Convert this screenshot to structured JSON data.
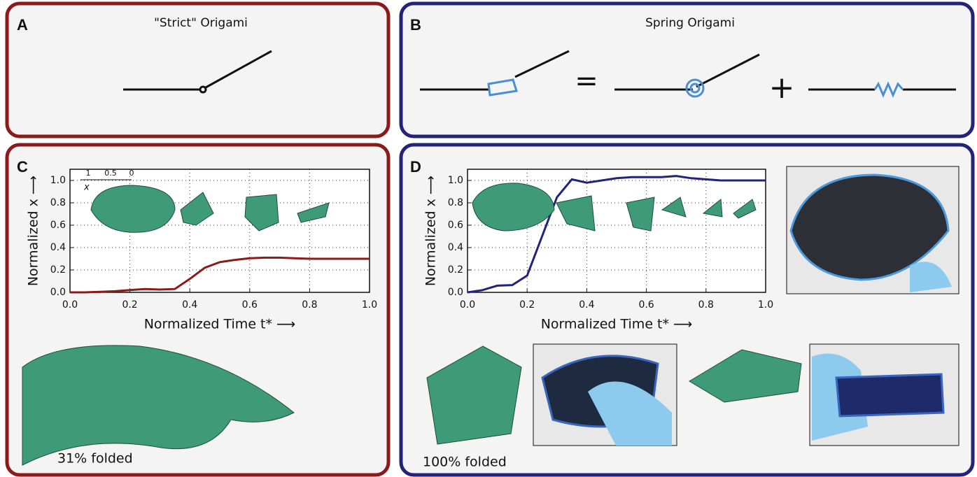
{
  "panels": {
    "A": {
      "label": "A",
      "title": "\"Strict\" Origami"
    },
    "B": {
      "label": "B",
      "title": "Spring Origami",
      "equals": "=",
      "plus": "+"
    },
    "C": {
      "label": "C",
      "caption": "31% folded",
      "inset_ticks": [
        "1",
        "0.5",
        "0"
      ],
      "inset_axis": "x"
    },
    "D": {
      "label": "D",
      "caption": "100% folded"
    }
  },
  "chart_data": [
    {
      "type": "line",
      "xlabel": "Normalized Time t* ⟶",
      "ylabel": "Normalized x ⟶",
      "x": [
        0,
        0.05,
        0.1,
        0.15,
        0.2,
        0.25,
        0.3,
        0.35,
        0.4,
        0.45,
        0.5,
        0.55,
        0.6,
        0.65,
        0.7,
        0.75,
        0.8,
        0.85,
        0.9,
        0.95,
        1.0
      ],
      "series": [
        {
          "color": "#8b1a1a",
          "values": [
            0,
            0,
            0.005,
            0.01,
            0.02,
            0.03,
            0.025,
            0.03,
            0.12,
            0.22,
            0.27,
            0.29,
            0.305,
            0.31,
            0.31,
            0.305,
            0.3,
            0.3,
            0.3,
            0.3,
            0.3
          ]
        }
      ],
      "xlim": [
        0,
        1
      ],
      "ylim": [
        0,
        1.1
      ],
      "xticks": [
        {
          "value": 0,
          "label": "0.0"
        },
        0.2,
        0.4,
        0.6,
        0.8,
        {
          "value": 1,
          "label": "1.0"
        }
      ],
      "yticks": [
        {
          "value": 0,
          "label": "0.0"
        },
        0.2,
        0.4,
        0.6,
        0.8,
        {
          "value": 1,
          "label": "1.0"
        }
      ],
      "grid": true
    },
    {
      "type": "line",
      "xlabel": "Normalized Time t* ⟶",
      "ylabel": "Normalized x ⟶",
      "x": [
        0,
        0.05,
        0.1,
        0.15,
        0.2,
        0.25,
        0.3,
        0.35,
        0.4,
        0.45,
        0.5,
        0.55,
        0.6,
        0.65,
        0.7,
        0.75,
        0.8,
        0.85,
        0.9,
        0.95,
        1.0
      ],
      "series": [
        {
          "color": "#23237a",
          "values": [
            0,
            0.02,
            0.06,
            0.065,
            0.15,
            0.5,
            0.85,
            1.01,
            0.98,
            1.0,
            1.02,
            1.03,
            1.03,
            1.03,
            1.04,
            1.02,
            1.01,
            1.0,
            1.0,
            1.0,
            1.0
          ]
        }
      ],
      "xlim": [
        0,
        1
      ],
      "ylim": [
        0,
        1.1
      ],
      "xticks": [
        {
          "value": 0,
          "label": "0.0"
        },
        0.2,
        0.4,
        0.6,
        0.8,
        {
          "value": 1,
          "label": "1.0"
        }
      ],
      "yticks": [
        {
          "value": 0,
          "label": "0.0"
        },
        0.2,
        0.4,
        0.6,
        0.8,
        {
          "value": 1,
          "label": "1.0"
        }
      ],
      "grid": true
    }
  ]
}
